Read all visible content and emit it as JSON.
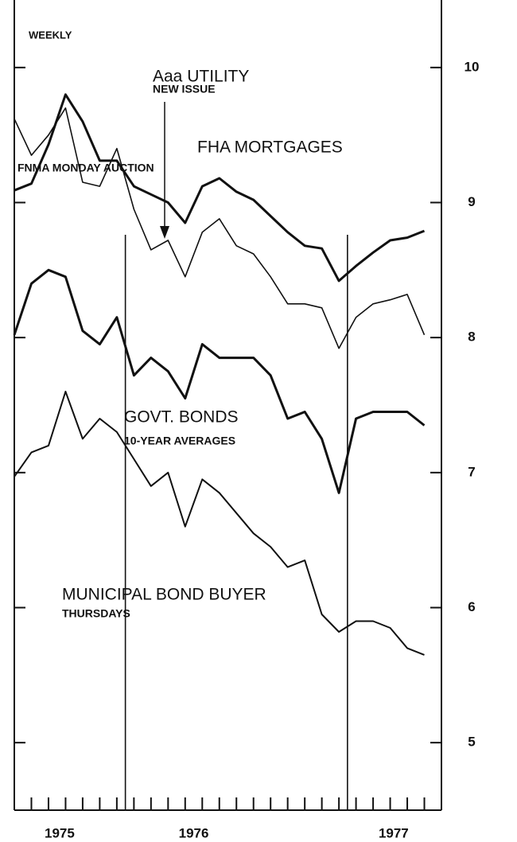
{
  "chart_data": {
    "type": "line",
    "title": "WEEKLY",
    "x": [
      0,
      1,
      2,
      3,
      4,
      5,
      6,
      7,
      8,
      9,
      10,
      11,
      12,
      13,
      14,
      15,
      16,
      17,
      18,
      19,
      20,
      21,
      22,
      23,
      24
    ],
    "xlim": [
      0,
      25
    ],
    "xticks": [
      {
        "value": 2.65,
        "label": "1975"
      },
      {
        "value": 10.5,
        "label": "1976"
      },
      {
        "value": 22.2,
        "label": "1977"
      }
    ],
    "xminorticks": [
      1,
      2,
      3,
      4,
      5,
      6,
      7,
      8,
      9,
      10,
      11,
      12,
      13,
      14,
      15,
      16,
      17,
      18,
      19,
      20,
      21,
      22,
      23,
      24
    ],
    "vlines": [
      6.5,
      19.5
    ],
    "ylim": [
      4.5,
      10.5
    ],
    "yticks": [
      5,
      6,
      7,
      8,
      9,
      10
    ],
    "series": [
      {
        "name": "FHA MORTGAGES",
        "note": "FNMA MONDAY AUCTION",
        "color": "#111111",
        "width": 3,
        "values": [
          9.09,
          9.14,
          9.43,
          9.8,
          9.6,
          9.31,
          9.31,
          9.12,
          9.06,
          9.0,
          8.85,
          9.12,
          9.18,
          9.08,
          9.02,
          8.9,
          8.78,
          8.68,
          8.66,
          8.42,
          8.53,
          8.63,
          8.72,
          8.74,
          8.79
        ]
      },
      {
        "name": "Aaa UTILITY",
        "note": "NEW ISSUE",
        "color": "#111111",
        "width": 1.6,
        "values": [
          9.62,
          9.35,
          9.5,
          9.7,
          9.15,
          9.12,
          9.4,
          8.95,
          8.65,
          8.72,
          8.45,
          8.78,
          8.88,
          8.68,
          8.62,
          8.45,
          8.25,
          8.25,
          8.22,
          7.92,
          8.15,
          8.25,
          8.28,
          8.32,
          8.02
        ]
      },
      {
        "name": "GOVT. BONDS",
        "note": "10-YEAR AVERAGES",
        "color": "#111111",
        "width": 3,
        "values": [
          8.02,
          8.4,
          8.5,
          8.45,
          8.05,
          7.95,
          8.15,
          7.72,
          7.85,
          7.75,
          7.55,
          7.95,
          7.85,
          7.85,
          7.85,
          7.72,
          7.4,
          7.45,
          7.25,
          6.85,
          7.4,
          7.45,
          7.45,
          7.45,
          7.35
        ]
      },
      {
        "name": "MUNICIPAL BOND BUYER",
        "note": "THURSDAYS",
        "color": "#111111",
        "width": 2,
        "values": [
          6.97,
          7.15,
          7.2,
          7.6,
          7.25,
          7.4,
          7.3,
          7.1,
          6.9,
          7.0,
          6.6,
          6.95,
          6.85,
          6.7,
          6.55,
          6.45,
          6.3,
          6.35,
          5.95,
          5.82,
          5.9,
          5.9,
          5.85,
          5.7,
          5.65
        ]
      }
    ]
  }
}
